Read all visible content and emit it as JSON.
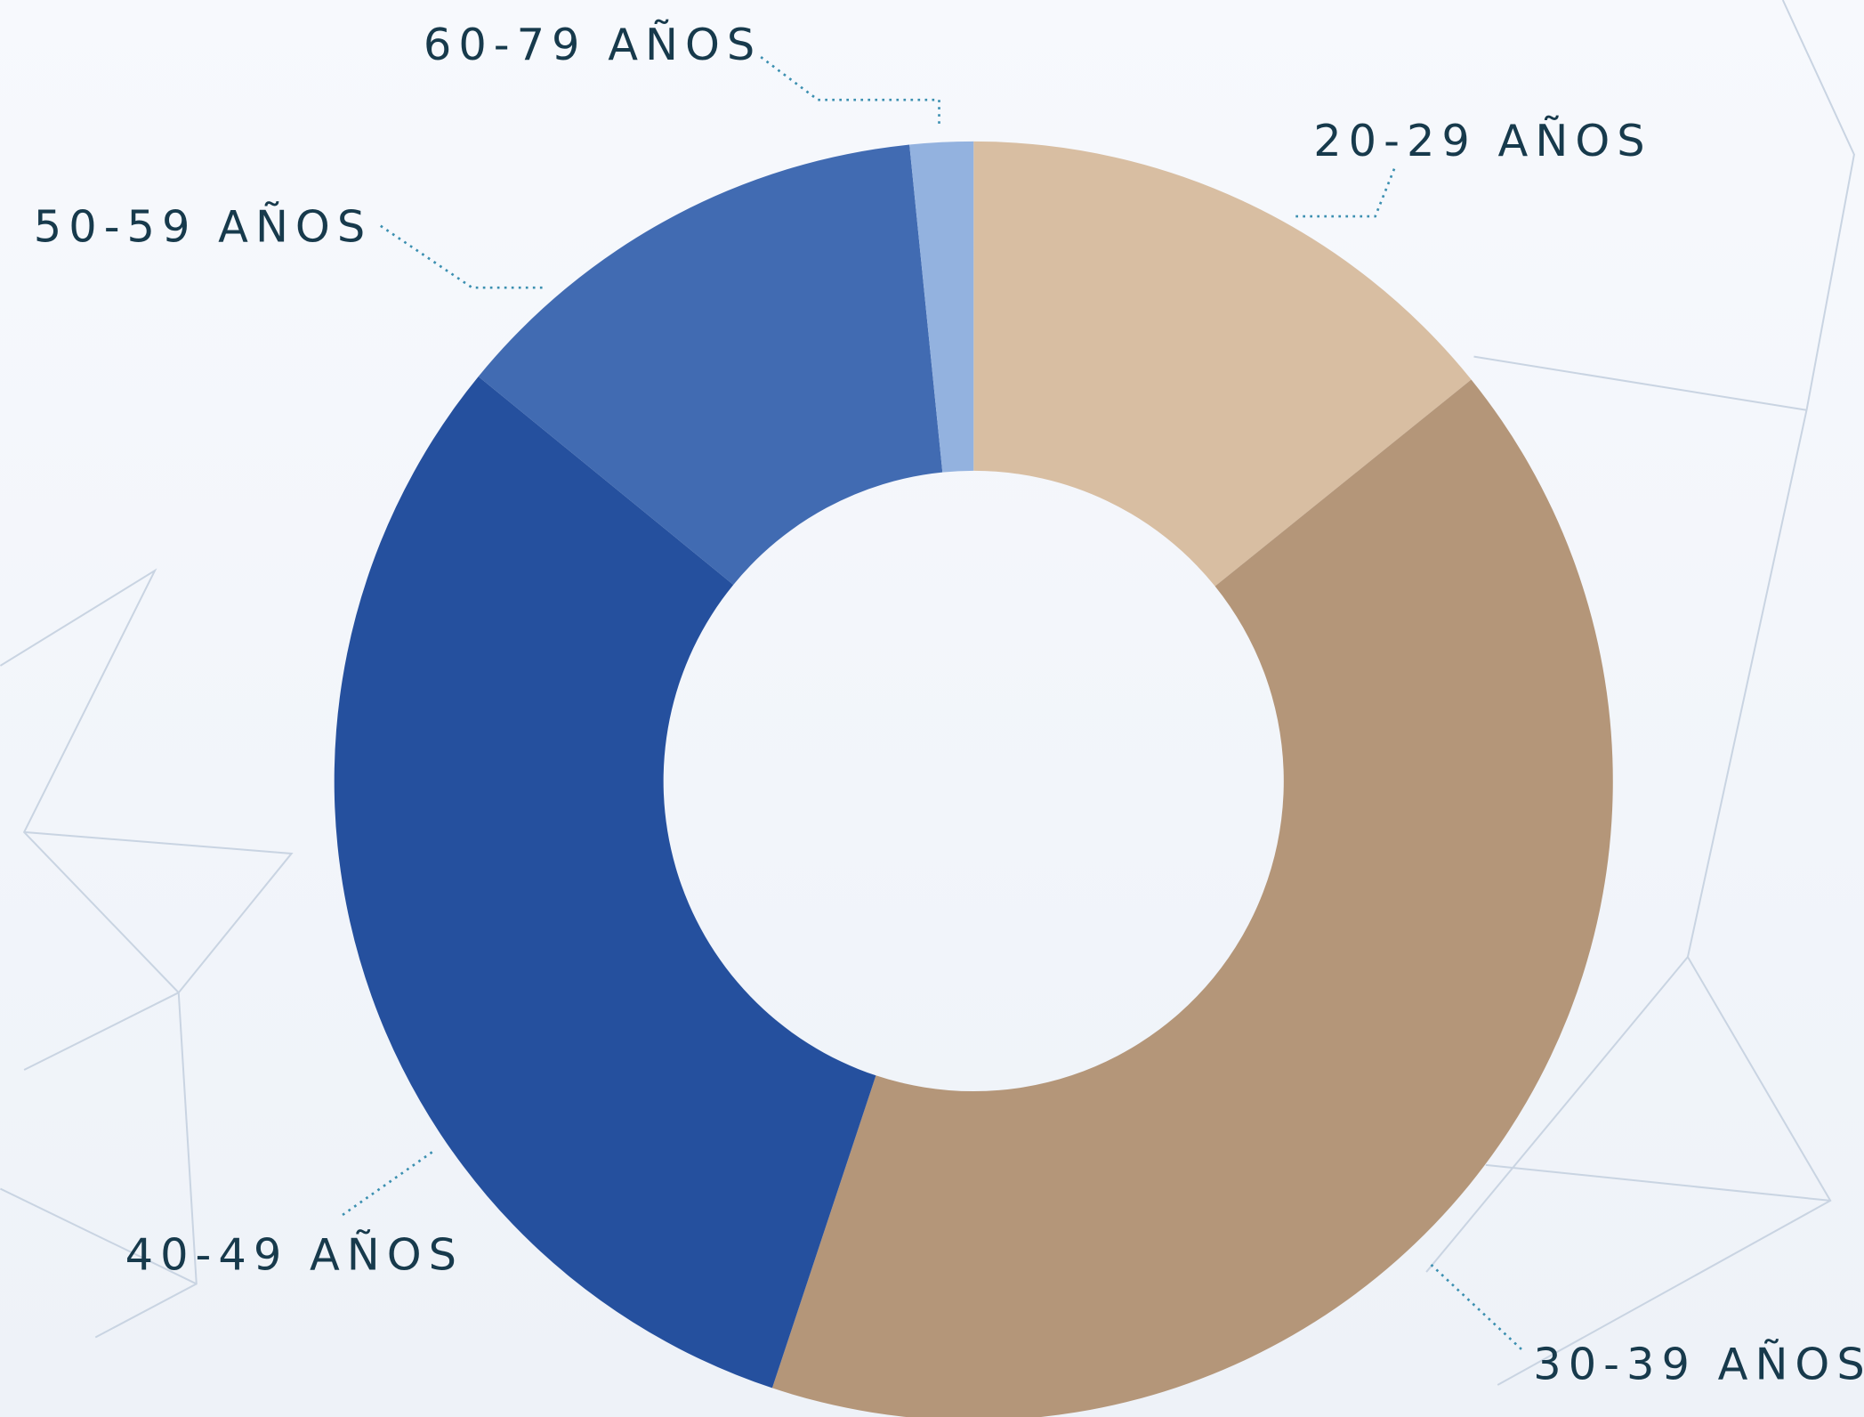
{
  "chart_data": {
    "type": "donut",
    "categories": [
      "20-29 AÑOS",
      "30-39 AÑOS",
      "40-49 AÑOS",
      "50-59 AÑOS",
      "60-79 AÑOS"
    ],
    "values": [
      14.2,
      40.9,
      30.8,
      12.5,
      1.6
    ],
    "colors": [
      "#d8bea2",
      "#b49679",
      "#25509e",
      "#416bb2",
      "#93b2df"
    ]
  }
}
